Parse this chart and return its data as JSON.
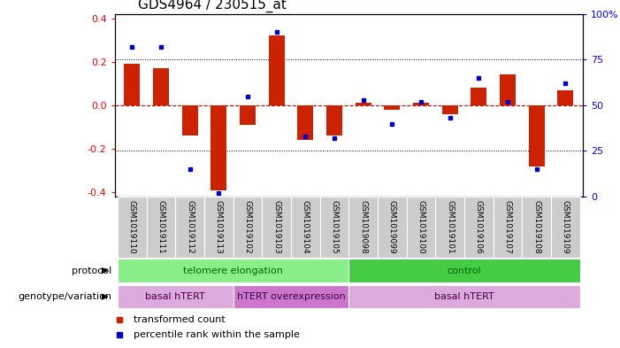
{
  "title": "GDS4964 / 230515_at",
  "samples": [
    "GSM1019110",
    "GSM1019111",
    "GSM1019112",
    "GSM1019113",
    "GSM1019102",
    "GSM1019103",
    "GSM1019104",
    "GSM1019105",
    "GSM1019098",
    "GSM1019099",
    "GSM1019100",
    "GSM1019101",
    "GSM1019106",
    "GSM1019107",
    "GSM1019108",
    "GSM1019109"
  ],
  "bar_values": [
    0.19,
    0.17,
    -0.14,
    -0.39,
    -0.09,
    0.32,
    -0.16,
    -0.14,
    0.01,
    -0.02,
    0.01,
    -0.04,
    0.08,
    0.14,
    -0.28,
    0.07
  ],
  "dot_values": [
    82,
    82,
    15,
    2,
    55,
    90,
    33,
    32,
    53,
    40,
    52,
    43,
    65,
    52,
    15,
    62
  ],
  "ylim": [
    -0.42,
    0.42
  ],
  "yticks": [
    -0.4,
    -0.2,
    0.0,
    0.2,
    0.4
  ],
  "right_yticks": [
    0,
    25,
    50,
    75,
    100
  ],
  "right_ylabels": [
    "0",
    "25",
    "50",
    "75",
    "100%"
  ],
  "bar_color": "#cc2200",
  "dot_color": "#0000cc",
  "hline_color": "#cc0000",
  "dotted_color": "#000000",
  "bg_color": "#ffffff",
  "protocol_groups": [
    {
      "label": "telomere elongation",
      "start": 0,
      "end": 7,
      "color": "#88ee88"
    },
    {
      "label": "control",
      "start": 8,
      "end": 15,
      "color": "#44cc44"
    }
  ],
  "genotype_groups": [
    {
      "label": "basal hTERT",
      "start": 0,
      "end": 3,
      "color": "#ddaadd"
    },
    {
      "label": "hTERT overexpression",
      "start": 4,
      "end": 7,
      "color": "#cc77cc"
    },
    {
      "label": "basal hTERT",
      "start": 8,
      "end": 15,
      "color": "#ddaadd"
    }
  ],
  "legend_items": [
    {
      "label": "transformed count",
      "color": "#cc2200"
    },
    {
      "label": "percentile rank within the sample",
      "color": "#0000cc"
    }
  ],
  "tick_fontsize": 8,
  "title_fontsize": 11,
  "sample_fontsize": 6.5,
  "group_fontsize": 8
}
